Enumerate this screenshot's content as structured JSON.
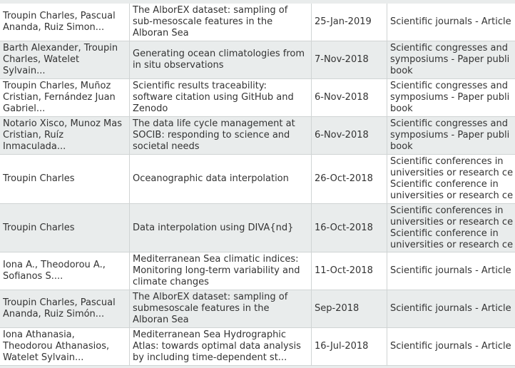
{
  "table": {
    "rows": [
      [
        [
          "Troupin Charles, Pascual",
          "Ananda, Ruiz Simon..."
        ],
        [
          "The AlborEX dataset: sampling of",
          "sub-mesoscale features in the",
          "Alboran Sea"
        ],
        [
          "25-Jan-2019"
        ],
        [
          "Scientific journals - Article"
        ]
      ],
      [
        [
          "Barth Alexander, Troupin",
          "Charles, Watelet",
          "Sylvain..."
        ],
        [
          "Generating ocean climatologies from",
          "in situ observations"
        ],
        [
          "7-Nov-2018"
        ],
        [
          "Scientific congresses and",
          "symposiums - Paper publi",
          "book"
        ]
      ],
      [
        [
          "Troupin Charles, Muñoz",
          "Cristian, Fernández Juan",
          "Gabriel..."
        ],
        [
          "Scientific results traceability:",
          "software citation using GitHub and",
          "Zenodo"
        ],
        [
          "6-Nov-2018"
        ],
        [
          "Scientific congresses and",
          "symposiums - Paper publi",
          "book"
        ]
      ],
      [
        [
          "Notario Xisco, Munoz Mas",
          "Cristian, Ruíz",
          "Inmaculada..."
        ],
        [
          "The data life cycle management at",
          "SOCIB: responding to science and",
          "societal needs"
        ],
        [
          "6-Nov-2018"
        ],
        [
          "Scientific congresses and",
          "symposiums - Paper publi",
          "book"
        ]
      ],
      [
        [
          "Troupin Charles"
        ],
        [
          "Oceanographic data interpolation"
        ],
        [
          "26-Oct-2018"
        ],
        [
          "Scientific conferences in",
          "universities or research ce",
          "Scientific conference in",
          "universities or research ce"
        ]
      ],
      [
        [
          "Troupin Charles"
        ],
        [
          "Data interpolation using DIVA{nd}"
        ],
        [
          "16-Oct-2018"
        ],
        [
          "Scientific conferences in",
          "universities or research ce",
          "Scientific conference in",
          "universities or research ce"
        ]
      ],
      [
        [
          "Iona A., Theodorou A.,",
          "Sofianos S...."
        ],
        [
          "Mediterranean Sea climatic indices:",
          "Monitoring long-term variability and",
          "climate changes"
        ],
        [
          "11-Oct-2018"
        ],
        [
          "Scientific journals - Article"
        ]
      ],
      [
        [
          "Troupin Charles, Pascual",
          "Ananda, Ruiz Simón..."
        ],
        [
          "The AlborEX dataset: sampling of",
          "submesoscale features in the",
          "Alboran Sea"
        ],
        [
          "Sep-2018"
        ],
        [
          "Scientific journals - Article"
        ]
      ],
      [
        [
          "Iona Athanasia,",
          "Theodorou Athanasios,",
          "Watelet Sylvain..."
        ],
        [
          "Mediterranean Sea Hydrographic",
          "Atlas: towards optimal data analysis",
          "by including time-dependent st..."
        ],
        [
          "16-Jul-2018"
        ],
        [
          "Scientific journals - Article"
        ]
      ]
    ]
  }
}
